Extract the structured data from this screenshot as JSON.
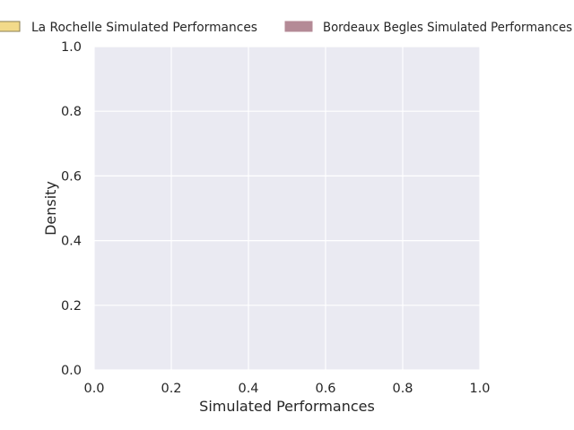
{
  "chart_data": {
    "type": "area",
    "title": "",
    "xlabel": "Simulated Performances",
    "ylabel": "Density",
    "xlim": [
      0.0,
      1.0
    ],
    "ylim": [
      0.0,
      1.0
    ],
    "x_ticks": [
      0.0,
      0.2,
      0.4,
      0.6,
      0.8,
      1.0
    ],
    "y_ticks": [
      0.0,
      0.2,
      0.4,
      0.6,
      0.8,
      1.0
    ],
    "x_tick_labels": [
      "0.0",
      "0.2",
      "0.4",
      "0.6",
      "0.8",
      "1.0"
    ],
    "y_tick_labels": [
      "0.0",
      "0.2",
      "0.4",
      "0.6",
      "0.8",
      "1.0"
    ],
    "grid": true,
    "legend_position": "top",
    "series": [
      {
        "name": "La Rochelle Simulated Performances",
        "color": "#f2da8a",
        "edge_color": "#8a7d52",
        "values": []
      },
      {
        "name": "Bordeaux Begles Simulated Performances",
        "color": "#b48a96",
        "edge_color": "#b48a96",
        "values": []
      }
    ]
  },
  "colors": {
    "plot_background": "#eaeaf2",
    "grid": "#ffffff",
    "text": "#262626"
  }
}
